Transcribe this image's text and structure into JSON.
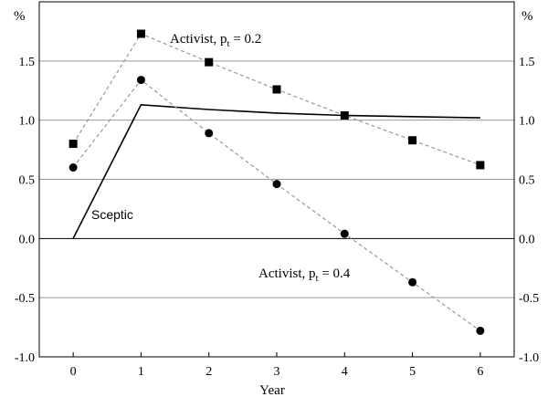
{
  "chart_data": {
    "type": "line",
    "x": [
      0,
      1,
      2,
      3,
      4,
      5,
      6
    ],
    "xlabel": "Year",
    "ylabel_left": "%",
    "ylabel_right": "%",
    "xlim": [
      -0.5,
      6.5
    ],
    "ylim": [
      -1.0,
      2.0
    ],
    "x_ticks": [
      "0",
      "1",
      "2",
      "3",
      "4",
      "5",
      "6"
    ],
    "y_ticks": [
      {
        "value": -1.0,
        "label": "-1.0"
      },
      {
        "value": -0.5,
        "label": "-0.5"
      },
      {
        "value": 0.0,
        "label": "0.0"
      },
      {
        "value": 0.5,
        "label": "0.5"
      },
      {
        "value": 1.0,
        "label": "1.0"
      },
      {
        "value": 1.5,
        "label": "1.5"
      }
    ],
    "grid": "horizontal",
    "series": [
      {
        "name": "Sceptic",
        "style": "solid",
        "marker": "none",
        "color": "#000000",
        "x": [
          0,
          1,
          2,
          3,
          4,
          5,
          6
        ],
        "values": [
          0.0,
          1.13,
          1.09,
          1.06,
          1.04,
          1.03,
          1.02
        ]
      },
      {
        "name": "Activist, pt = 0.2",
        "style": "dashed",
        "marker": "square",
        "color": "#999999",
        "x": [
          0,
          1,
          2,
          3,
          4,
          5,
          6
        ],
        "values": [
          0.8,
          1.73,
          1.49,
          1.26,
          1.04,
          0.83,
          0.62
        ]
      },
      {
        "name": "Activist, pt = 0.4",
        "style": "dashed",
        "marker": "circle",
        "color": "#999999",
        "x": [
          0,
          1,
          2,
          3,
          4,
          5,
          6
        ],
        "values": [
          0.6,
          1.34,
          0.89,
          0.46,
          0.04,
          -0.37,
          -0.78
        ]
      }
    ],
    "annotations": {
      "sceptic": "Sceptic",
      "activist_prefix": "Activist, p",
      "activist_sub": "t",
      "activist_02_value": " = 0.2",
      "activist_04_value": " = 0.4"
    }
  }
}
